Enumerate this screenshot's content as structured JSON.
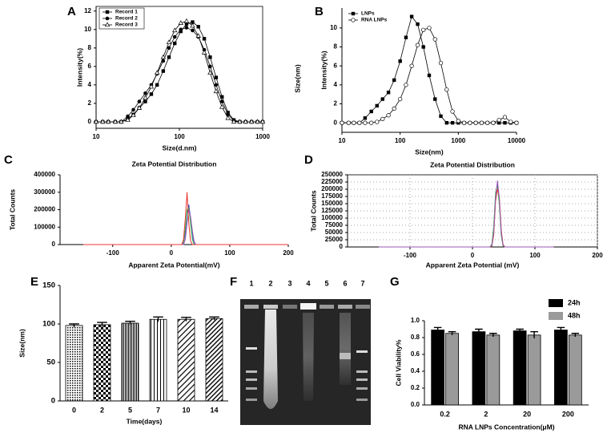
{
  "chart_data": [
    {
      "panel": "A",
      "type": "line",
      "xscale": "log",
      "xlabel": "Size(d.nm)",
      "ylabel": "Intensity(%)",
      "legend": "upper left",
      "xlim": [
        10,
        1000
      ],
      "xticks": [
        10,
        100,
        1000
      ],
      "ylim": [
        -0.7,
        12.5
      ],
      "yticks": [
        0,
        2,
        4,
        6,
        8,
        10,
        12
      ],
      "x": [
        10,
        12,
        14,
        17,
        20,
        24,
        28,
        33,
        39,
        46,
        54,
        64,
        75,
        88,
        104,
        122,
        144,
        169,
        199,
        234,
        276,
        325,
        383,
        451,
        531,
        625,
        736,
        866,
        1000
      ],
      "series": [
        {
          "name": "Record 1",
          "color": "#000000",
          "marker": "square",
          "values": [
            0,
            0,
            0,
            0,
            0,
            0.3,
            0.8,
            1.5,
            2.2,
            3.0,
            4.0,
            5.5,
            7.0,
            8.5,
            9.8,
            10.6,
            10.8,
            10.3,
            9.0,
            7.0,
            4.8,
            2.7,
            1.0,
            0.2,
            0,
            0,
            0,
            0,
            0
          ]
        },
        {
          "name": "Record 2",
          "color": "#000000",
          "marker": "circle",
          "values": [
            0,
            0,
            0,
            0,
            0,
            0.6,
            1.3,
            2.2,
            3.1,
            4.0,
            5.2,
            6.6,
            8.0,
            9.2,
            10.0,
            10.2,
            9.9,
            9.2,
            7.8,
            6.0,
            4.0,
            2.2,
            0.8,
            0.1,
            0,
            0,
            0,
            0,
            0
          ]
        },
        {
          "name": "Record 3",
          "color": "#000000",
          "marker": "triangle-open",
          "values": [
            0,
            0,
            0,
            0,
            0,
            0.2,
            0.7,
            1.5,
            2.6,
            3.8,
            5.3,
            7.0,
            8.6,
            9.9,
            10.7,
            10.9,
            10.4,
            9.3,
            7.5,
            5.3,
            3.3,
            1.6,
            0.4,
            0,
            0,
            0,
            0,
            0,
            0
          ]
        }
      ]
    },
    {
      "panel": "B",
      "type": "line",
      "xscale": "log",
      "xlabel": "Size(nm)",
      "ylabel": "Intensity(%)",
      "annotation": "Size(nm)",
      "legend": "upper left",
      "xlim": [
        10,
        10000
      ],
      "xticks": [
        10,
        100,
        1000,
        10000
      ],
      "ylim": [
        -1.0,
        12.1
      ],
      "yticks": [
        0,
        2,
        4,
        6,
        8,
        10
      ],
      "x": [
        10,
        13,
        16,
        20,
        25,
        32,
        40,
        50,
        63,
        79,
        100,
        126,
        158,
        200,
        251,
        316,
        398,
        501,
        631,
        794,
        1000,
        1259,
        1585,
        1995,
        2512,
        3162,
        3981,
        5012,
        6310,
        7943,
        10000
      ],
      "series": [
        {
          "name": "LNPs",
          "color": "#000000",
          "marker": "square",
          "values": [
            0,
            0,
            0,
            0,
            0.5,
            1.2,
            1.8,
            2.5,
            3.2,
            4.5,
            6.5,
            9.0,
            11.2,
            10.4,
            8.0,
            5.0,
            2.5,
            0.7,
            0,
            0,
            0,
            0,
            0,
            0,
            0,
            0,
            0,
            0,
            0,
            0,
            0
          ]
        },
        {
          "name": "RNA LNPs",
          "color": "#000000",
          "marker": "circle-open",
          "values": [
            0,
            0,
            0,
            0,
            0,
            0,
            0.1,
            0.4,
            0.8,
            1.5,
            2.5,
            4.0,
            6.0,
            8.2,
            9.8,
            10.0,
            8.8,
            6.3,
            3.5,
            1.2,
            0.2,
            0,
            0,
            0,
            0,
            0,
            0,
            0.3,
            0.6,
            0.1,
            0
          ]
        }
      ]
    },
    {
      "panel": "C",
      "type": "line",
      "title": "Zeta Potential Distribution",
      "xlabel": "Apparent Zeta Potential(mV)",
      "ylabel": "Total Counts",
      "xlim": [
        -190,
        200
      ],
      "xticks": [
        -100,
        0,
        100,
        200
      ],
      "ylim": [
        0,
        400000
      ],
      "yticks": [
        0,
        100000,
        200000,
        300000,
        400000
      ],
      "x": [
        -150,
        15,
        18,
        21,
        24,
        27,
        30,
        33,
        36,
        39,
        42,
        45,
        50,
        200
      ],
      "series": [
        {
          "color": "#3b5bdb",
          "values": [
            0,
            0,
            0,
            10000,
            60000,
            180000,
            230000,
            150000,
            50000,
            5000,
            0,
            0,
            0,
            0
          ]
        },
        {
          "color": "#3cb44b",
          "values": [
            0,
            0,
            0,
            15000,
            90000,
            200000,
            210000,
            120000,
            30000,
            0,
            0,
            0,
            0,
            0
          ]
        },
        {
          "color": "#9b59b6",
          "values": [
            0,
            0,
            0,
            0,
            30000,
            120000,
            200000,
            160000,
            80000,
            20000,
            0,
            0,
            0,
            0
          ]
        },
        {
          "color": "#e8382f",
          "values": [
            0,
            0,
            0,
            30000,
            150000,
            300000,
            120000,
            20000,
            0,
            0,
            0,
            0,
            0,
            0
          ]
        }
      ]
    },
    {
      "panel": "D",
      "type": "line",
      "title": "Zeta Potential Distribution",
      "xlabel": "Apparent Zeta Potential (mV)",
      "ylabel": "Total Counts",
      "grid": true,
      "xlim": [
        -200,
        200
      ],
      "xticks": [
        -100,
        0,
        100,
        200
      ],
      "ylim": [
        0,
        250000
      ],
      "yticks": [
        0,
        25000,
        50000,
        75000,
        100000,
        125000,
        150000,
        175000,
        200000,
        225000,
        250000
      ],
      "x": [
        -150,
        25,
        28,
        31,
        34,
        37,
        40,
        43,
        46,
        49,
        52,
        55,
        60,
        130
      ],
      "series": [
        {
          "color": "#3b5bdb",
          "values": [
            0,
            0,
            0,
            8000,
            60000,
            180000,
            220000,
            160000,
            45000,
            4000,
            0,
            0,
            0,
            0
          ]
        },
        {
          "color": "#3cb44b",
          "values": [
            0,
            0,
            0,
            10000,
            70000,
            190000,
            210000,
            150000,
            40000,
            3000,
            0,
            0,
            0,
            0
          ]
        },
        {
          "color": "#e8382f",
          "values": [
            0,
            0,
            0,
            3000,
            40000,
            160000,
            200000,
            175000,
            60000,
            8000,
            0,
            0,
            0,
            0
          ]
        },
        {
          "color": "#9b59b6",
          "values": [
            0,
            0,
            0,
            5000,
            50000,
            170000,
            230000,
            170000,
            50000,
            5000,
            0,
            0,
            0,
            0
          ]
        }
      ]
    },
    {
      "panel": "E",
      "type": "bar",
      "xlabel": "Time(days)",
      "ylabel": "Size(nm)",
      "categories": [
        "0",
        "2",
        "5",
        "7",
        "10",
        "14"
      ],
      "values": [
        98,
        99,
        101,
        106,
        106,
        107
      ],
      "errors": [
        2,
        3,
        2.5,
        3,
        2.5,
        2
      ],
      "ylim": [
        0,
        150
      ],
      "yticks": [
        0,
        50,
        100,
        150
      ]
    },
    {
      "panel": "G",
      "type": "bar",
      "xlabel": "RNA LNPs Concentration(μM)",
      "ylabel": "Cell Viability%",
      "legend": "upper right",
      "categories": [
        "0.2",
        "2",
        "20",
        "200"
      ],
      "series": [
        {
          "name": "24h",
          "color": "#000000",
          "values": [
            0.89,
            0.87,
            0.88,
            0.89
          ],
          "errors": [
            0.03,
            0.03,
            0.02,
            0.03
          ]
        },
        {
          "name": "48h",
          "color": "#9a9a9a",
          "values": [
            0.85,
            0.83,
            0.83,
            0.83
          ],
          "errors": [
            0.02,
            0.02,
            0.04,
            0.02
          ]
        }
      ],
      "ylim": [
        0,
        1.0
      ],
      "yticks": [
        {
          "value": 0,
          "label": "0.0"
        },
        0.2,
        0.4,
        0.6,
        0.8,
        {
          "value": 1.0,
          "label": "1.0"
        }
      ]
    }
  ],
  "gel": {
    "panel": "F",
    "lanes": [
      "1",
      "2",
      "3",
      "4",
      "5",
      "6",
      "7"
    ]
  }
}
